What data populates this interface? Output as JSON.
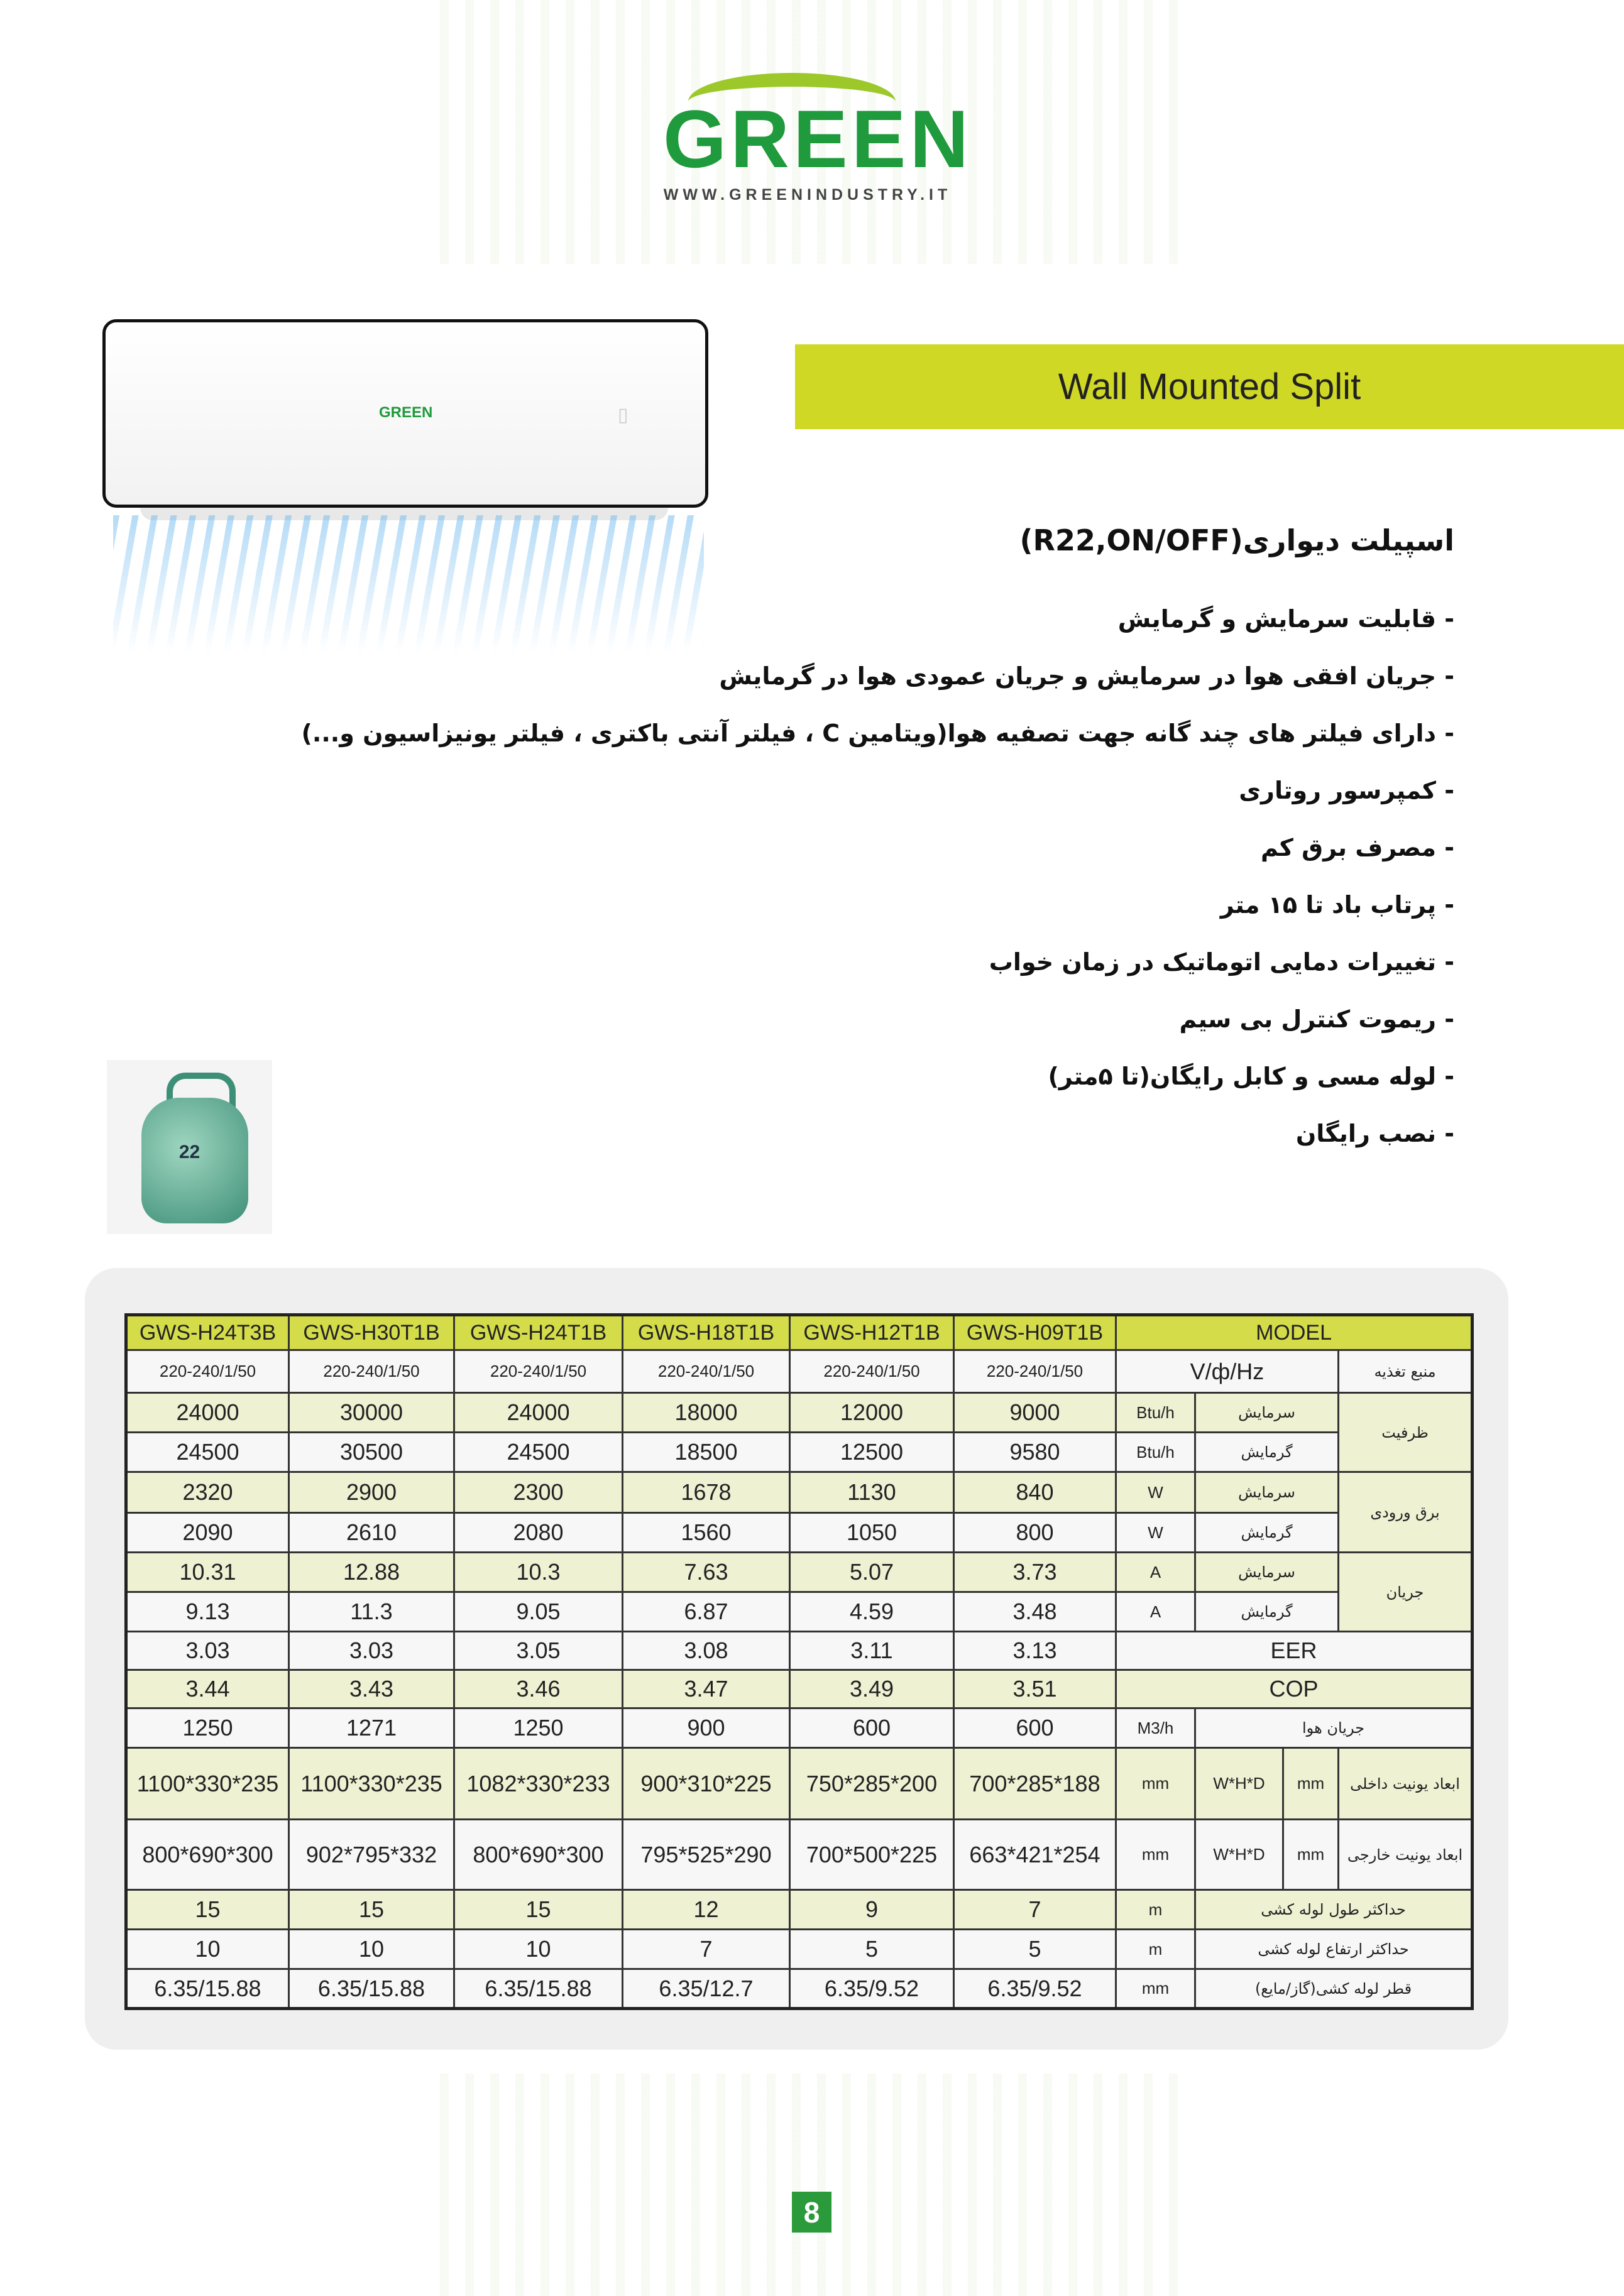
{
  "logo": {
    "brand": "GREEN",
    "url": "WWW.GREENINDUSTRY.IT"
  },
  "product_image": {
    "mini_logo": "GREEN"
  },
  "banner": {
    "title": "Wall Mounted Split"
  },
  "features": {
    "title": "اسپیلت دیواری(R22,ON/OFF)",
    "items": [
      "- قابلیت سرمایش و گرمایش",
      "- جریان افقی هوا در سرمایش و جریان عمودی هوا در گرمایش",
      "- دارای فیلتر های چند گانه جهت تصفیه هوا(ویتامین C ، فیلتر آنتی باکتری ، فیلتر یونیزاسیون و...)",
      "- کمپرسور روتاری",
      "- مصرف برق کم",
      "- پرتاب باد تا ۱۵ متر",
      "- تغییرات دمایی اتوماتیک در زمان خواب",
      "- ریموت کنترل بی سیم",
      "- لوله مسی و کابل رایگان(تا ۵متر)",
      "- نصب رایگان"
    ]
  },
  "refrigerant": {
    "label": "22"
  },
  "spec_table": {
    "header": {
      "values": [
        "GWS-H24T3B",
        "GWS-H30T1B",
        "GWS-H24T1B",
        "GWS-H18T1B",
        "GWS-H12T1B",
        "GWS-H09T1B"
      ],
      "label": "MODEL"
    },
    "rows": [
      {
        "values": [
          "220-240/1/50",
          "220-240/1/50",
          "220-240/1/50",
          "220-240/1/50",
          "220-240/1/50",
          "220-240/1/50"
        ],
        "unit": "V/ф/Hz",
        "group": "منبع تغذیه"
      },
      {
        "values": [
          "24000",
          "30000",
          "24000",
          "18000",
          "12000",
          "9000"
        ],
        "unit": "Btu/h",
        "sub": "سرمایش",
        "group": "ظرفیت"
      },
      {
        "values": [
          "24500",
          "30500",
          "24500",
          "18500",
          "12500",
          "9580"
        ],
        "unit": "Btu/h",
        "sub": "گرمایش"
      },
      {
        "values": [
          "2320",
          "2900",
          "2300",
          "1678",
          "1130",
          "840"
        ],
        "unit": "W",
        "sub": "سرمایش",
        "group": "برق ورودی"
      },
      {
        "values": [
          "2090",
          "2610",
          "2080",
          "1560",
          "1050",
          "800"
        ],
        "unit": "W",
        "sub": "گرمایش"
      },
      {
        "values": [
          "10.31",
          "12.88",
          "10.3",
          "7.63",
          "5.07",
          "3.73"
        ],
        "unit": "A",
        "sub": "سرمایش",
        "group": "جریان"
      },
      {
        "values": [
          "9.13",
          "11.3",
          "9.05",
          "6.87",
          "4.59",
          "3.48"
        ],
        "unit": "A",
        "sub": "گرمایش"
      },
      {
        "values": [
          "3.03",
          "3.03",
          "3.05",
          "3.08",
          "3.11",
          "3.13"
        ],
        "label": "EER"
      },
      {
        "values": [
          "3.44",
          "3.43",
          "3.46",
          "3.47",
          "3.49",
          "3.51"
        ],
        "label": "COP"
      },
      {
        "values": [
          "1250",
          "1271",
          "1250",
          "900",
          "600",
          "600"
        ],
        "unit": "M3/h",
        "group": "جریان هوا"
      },
      {
        "values": [
          "1100*330*235",
          "1100*330*235",
          "1082*330*233",
          "900*310*225",
          "750*285*200",
          "700*285*188"
        ],
        "unit": "mm",
        "dims": "W*H*D",
        "unit2": "mm",
        "group": "ابعاد یونیت داخلی"
      },
      {
        "values": [
          "800*690*300",
          "902*795*332",
          "800*690*300",
          "795*525*290",
          "700*500*225",
          "663*421*254"
        ],
        "unit": "mm",
        "dims": "W*H*D",
        "unit2": "mm",
        "group": "ابعاد یونیت خارجی"
      },
      {
        "values": [
          "15",
          "15",
          "15",
          "12",
          "9",
          "7"
        ],
        "unit": "m",
        "group": "حداکثر طول لوله کشی"
      },
      {
        "values": [
          "10",
          "10",
          "10",
          "7",
          "5",
          "5"
        ],
        "unit": "m",
        "group": "حداکثر ارتفاع لوله کشی"
      },
      {
        "values": [
          "6.35/15.88",
          "6.35/15.88",
          "6.35/15.88",
          "6.35/12.7",
          "6.35/9.52",
          "6.35/9.52"
        ],
        "unit": "mm",
        "group": "قطر لوله کشی(گاز/مایع)"
      }
    ]
  },
  "page_number": "8",
  "colors": {
    "brand_green": "#1f9a3c",
    "banner": "#cfd825",
    "table_header": "#d4dc4a",
    "row_tint": "#eef1d2"
  }
}
